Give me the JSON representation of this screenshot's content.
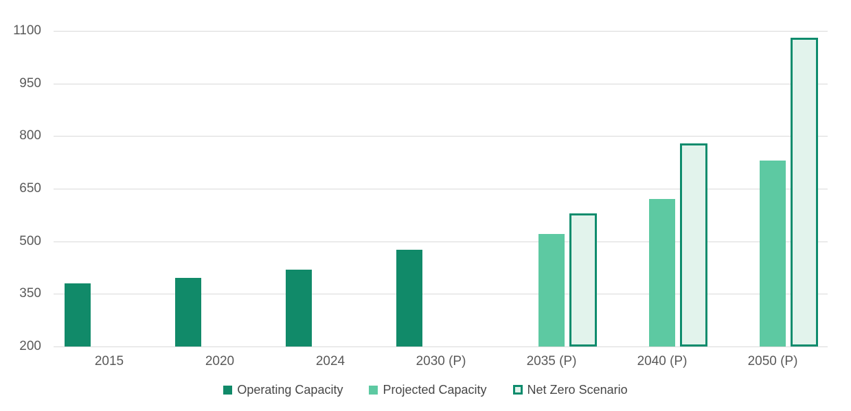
{
  "chart_data": {
    "type": "bar",
    "categories": [
      "2015",
      "2020",
      "2024",
      "2030 (P)",
      "2035 (P)",
      "2040 (P)",
      "2050 (P)"
    ],
    "series": [
      {
        "name": "Operating Capacity",
        "style": "solid",
        "color": "#118a69",
        "values": [
          380,
          395,
          420,
          475,
          null,
          null,
          null
        ]
      },
      {
        "name": "Projected Capacity",
        "style": "solid",
        "color": "#5dc9a2",
        "values": [
          null,
          null,
          null,
          null,
          520,
          620,
          730
        ]
      },
      {
        "name": "Net Zero Scenario",
        "style": "outlined",
        "color": "#e2f3ec",
        "border_color": "#0e8c6d",
        "values": [
          null,
          null,
          null,
          null,
          580,
          780,
          1080
        ]
      }
    ],
    "y_axis": {
      "min": 200,
      "max": 1100,
      "ticks": [
        200,
        350,
        500,
        650,
        800,
        950,
        1100
      ]
    },
    "x_axis_label": "",
    "grid": true,
    "legend_position": "bottom"
  },
  "colors": {
    "gridline": "#d9d9d9",
    "tick_text": "#595959",
    "legend_text": "#474747",
    "background": "#ffffff"
  }
}
